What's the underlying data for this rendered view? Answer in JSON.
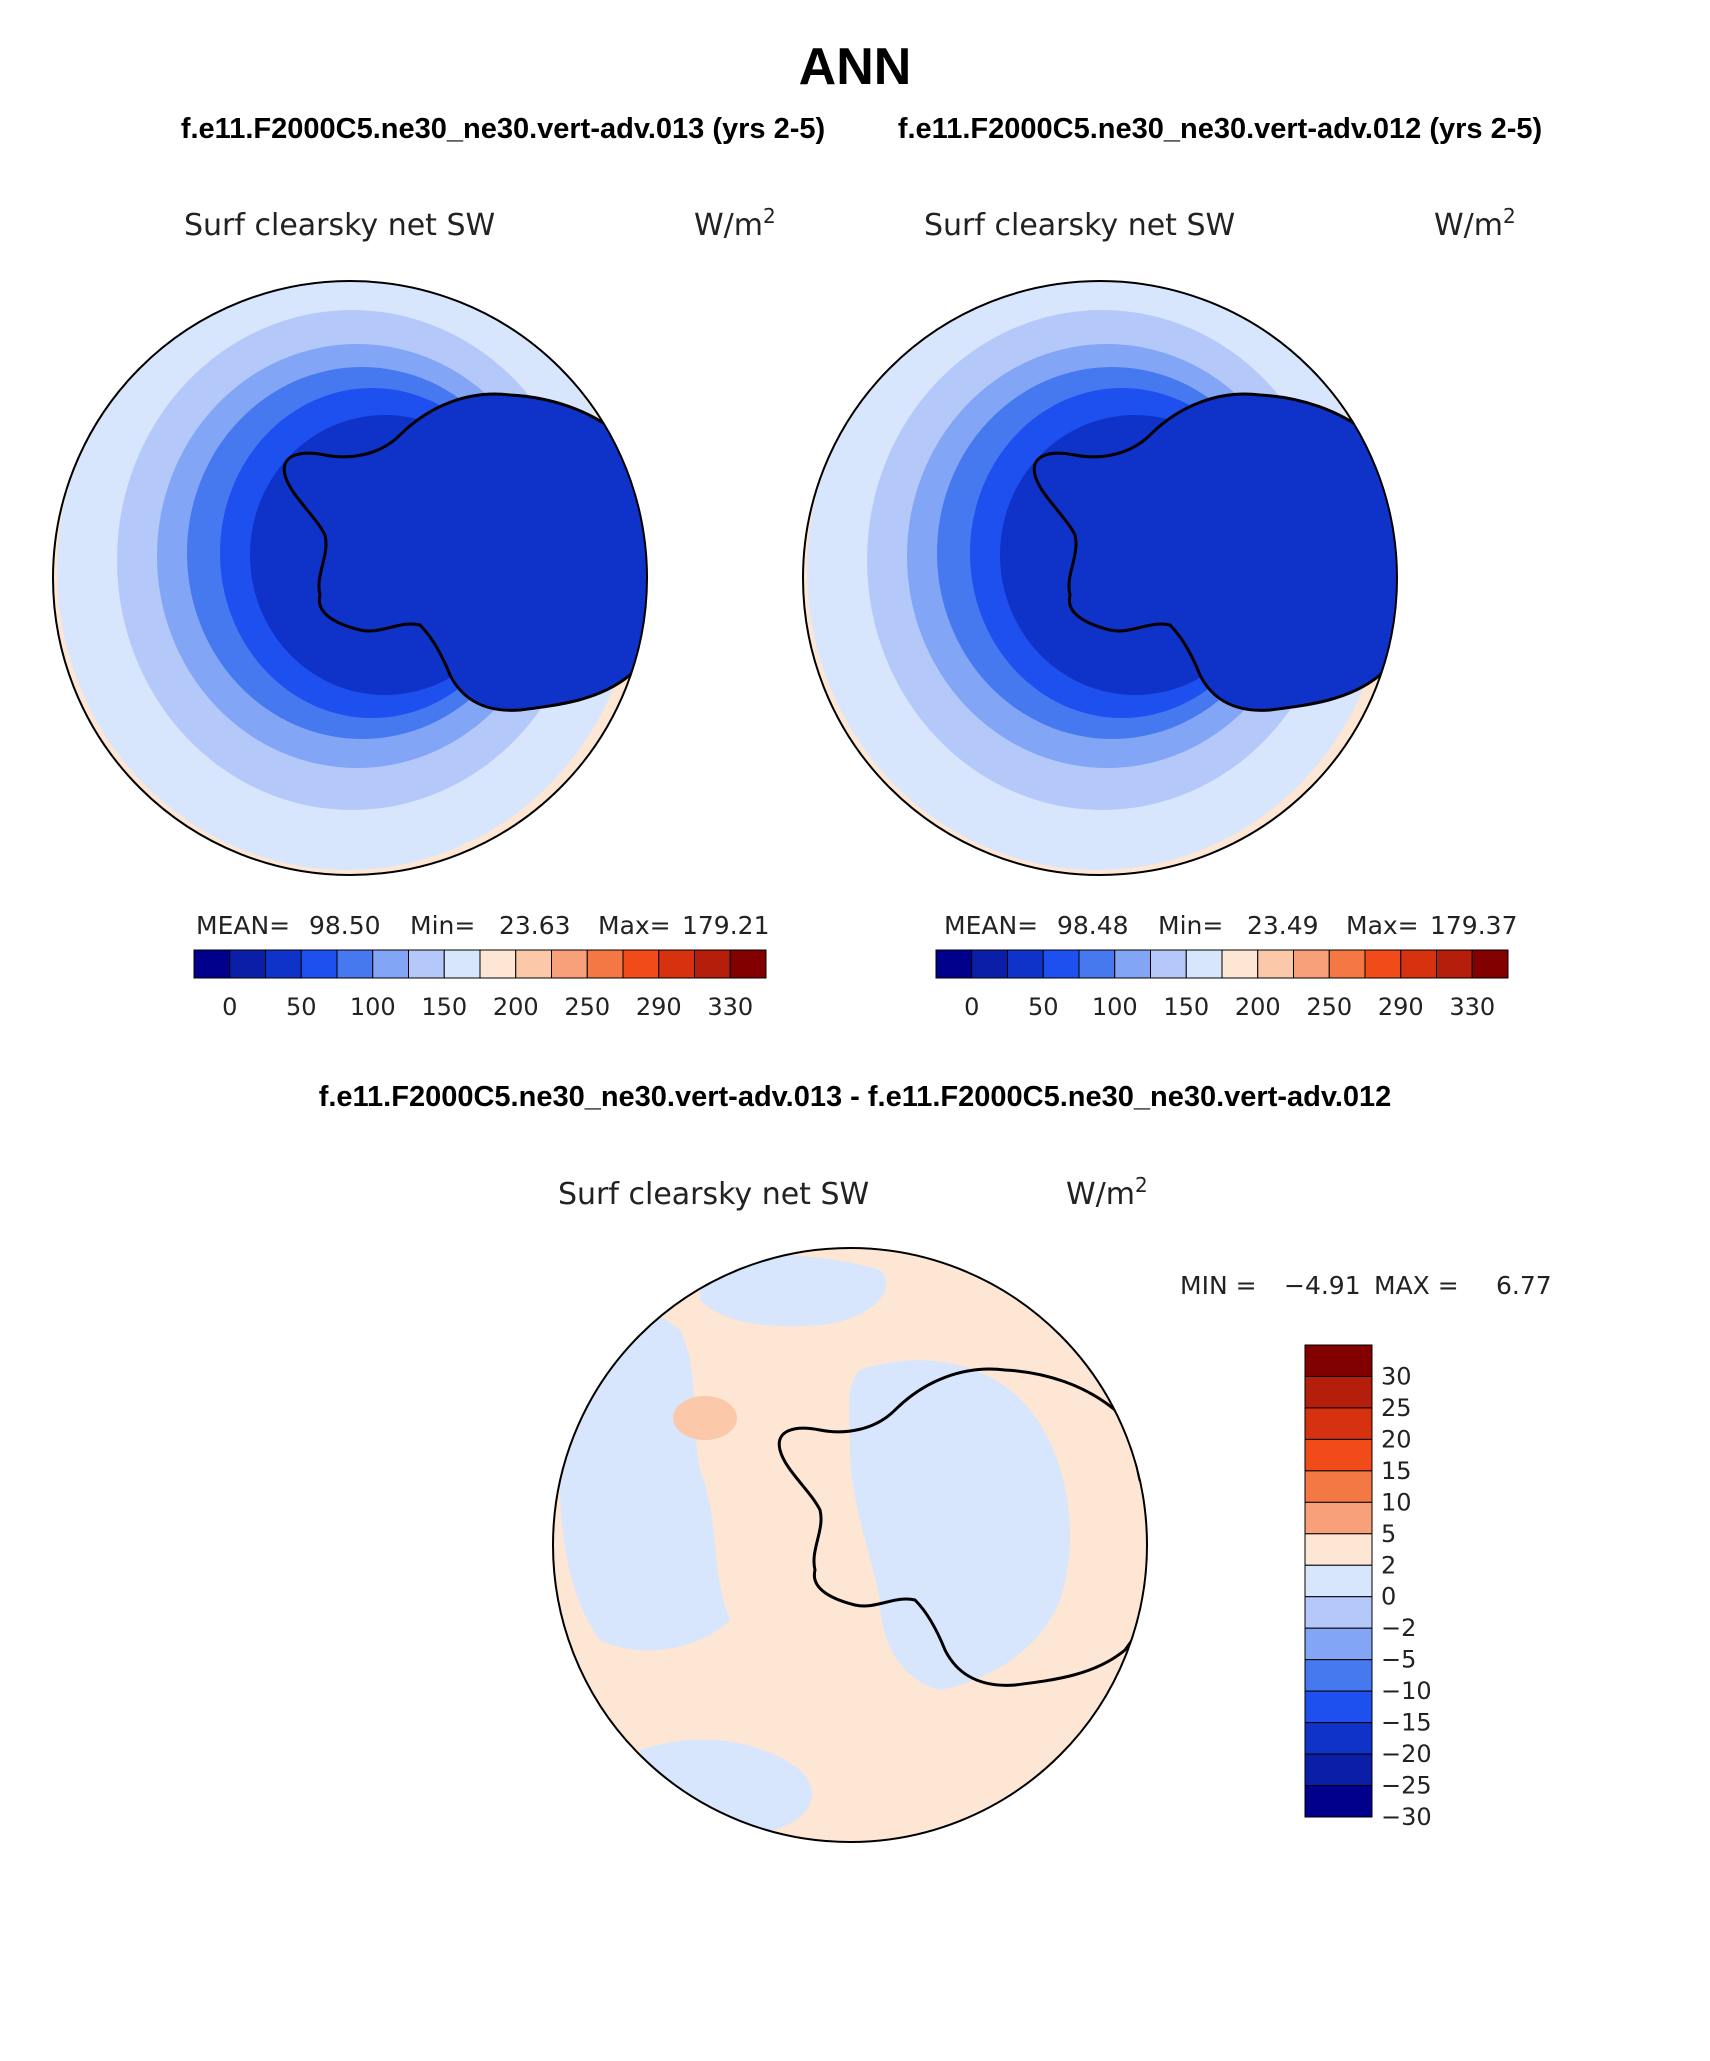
{
  "header": {
    "title": "ANN",
    "case_left": "f.e11.F2000C5.ne30_ne30.vert-adv.013 (yrs 2-5)",
    "case_right": "f.e11.F2000C5.ne30_ne30.vert-adv.012 (yrs 2-5)",
    "diff_title": "f.e11.F2000C5.ne30_ne30.vert-adv.013 - f.e11.F2000C5.ne30_ne30.vert-adv.012"
  },
  "panels": [
    {
      "variable": "Surf clearsky net SW",
      "units": "W/m",
      "units_exp": "2",
      "stats": {
        "mean_label": "MEAN=",
        "mean": "98.50",
        "min_label": "Min=",
        "min": "23.63",
        "max_label": "Max=",
        "max": "179.21"
      },
      "colorbar_labels": [
        "0",
        "50",
        "100",
        "150",
        "200",
        "250",
        "290",
        "330"
      ]
    },
    {
      "variable": "Surf clearsky net SW",
      "units": "W/m",
      "units_exp": "2",
      "stats": {
        "mean_label": "MEAN=",
        "mean": "98.48",
        "min_label": "Min=",
        "min": "23.49",
        "max_label": "Max=",
        "max": "179.37"
      },
      "colorbar_labels": [
        "0",
        "50",
        "100",
        "150",
        "200",
        "250",
        "290",
        "330"
      ]
    }
  ],
  "diff_panel": {
    "variable": "Surf clearsky net SW",
    "units": "W/m",
    "units_exp": "2",
    "min_label": "MIN =",
    "min": "−4.91",
    "max_label": "MAX =",
    "max": "6.77",
    "colorbar_labels": [
      "30",
      "25",
      "20",
      "15",
      "10",
      "5",
      "2",
      "0",
      "−2",
      "−5",
      "−10",
      "−15",
      "−20",
      "−25",
      "−30"
    ]
  },
  "colors": {
    "abs_palette": [
      "#00008c",
      "#0a1ea8",
      "#0f32c8",
      "#1e50f0",
      "#4678f0",
      "#82a5f5",
      "#b4c8fa",
      "#d7e6fc",
      "#fde6d4",
      "#fbc8aa",
      "#f7a07a",
      "#f47844",
      "#f04b19",
      "#d7320f",
      "#b41e0a",
      "#820000"
    ],
    "diff_palette": [
      "#820000",
      "#b41e0a",
      "#d7320f",
      "#f04b19",
      "#f47844",
      "#f7a07a",
      "#fde6d4",
      "#d7e6fc",
      "#b4c8fa",
      "#82a5f5",
      "#4678f0",
      "#1e50f0",
      "#0f32c8",
      "#0a1ea8",
      "#00008c"
    ]
  }
}
